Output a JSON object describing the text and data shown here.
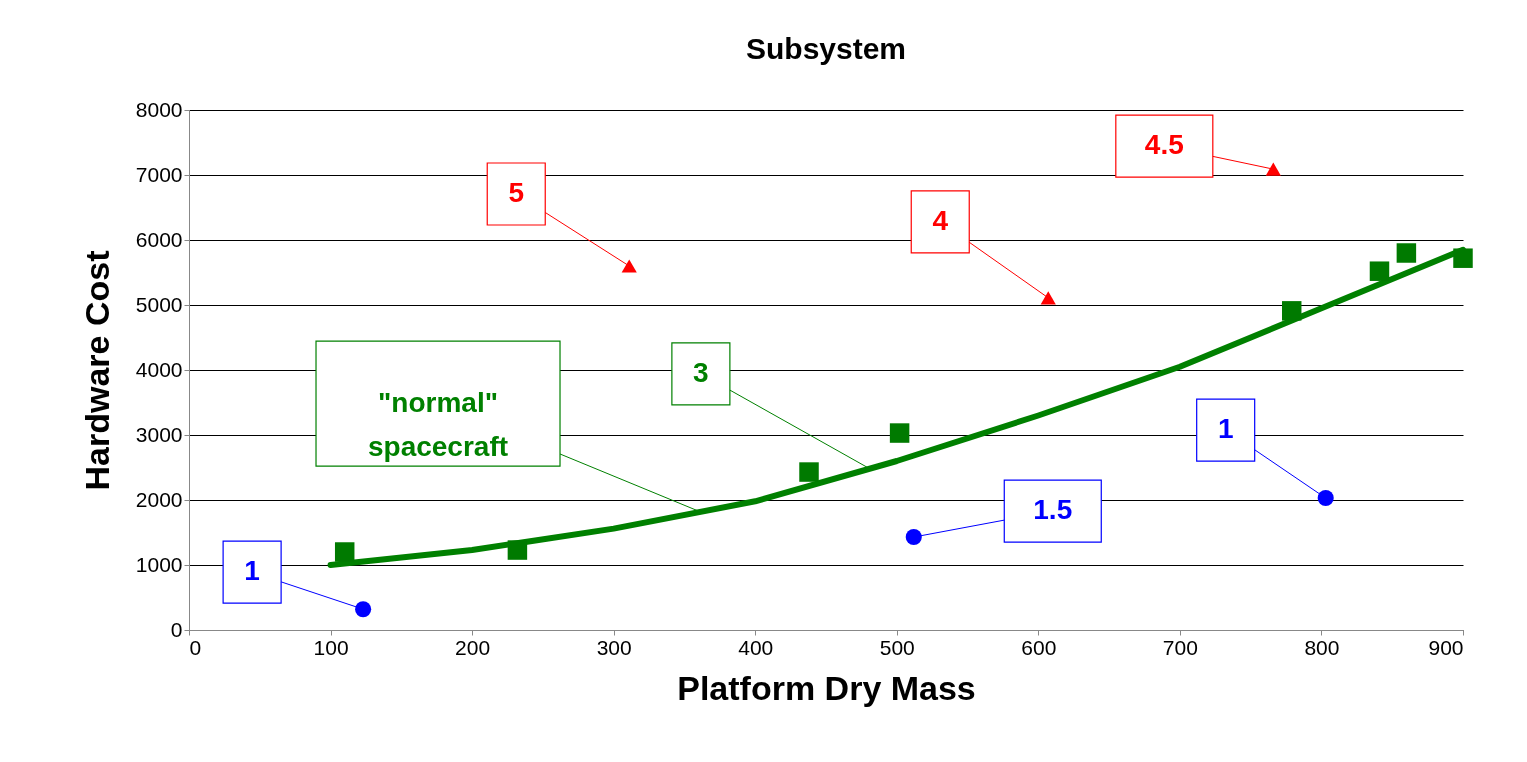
{
  "chart_data": {
    "type": "scatter",
    "title": "Subsystem",
    "xlabel": "Platform Dry Mass",
    "ylabel": "Hardware Cost",
    "xlim": [
      0,
      900
    ],
    "ylim": [
      0,
      8000
    ],
    "xticks": [
      0,
      100,
      200,
      300,
      400,
      500,
      600,
      700,
      800,
      900
    ],
    "yticks": [
      0,
      1000,
      2000,
      3000,
      4000,
      5000,
      6000,
      7000,
      8000
    ],
    "grid": "y",
    "series": [
      {
        "type": "line",
        "color": "#008000",
        "marker": "none",
        "x": [
          100,
          200,
          300,
          400,
          500,
          600,
          700,
          800,
          900
        ],
        "values": [
          1000,
          1230,
          1560,
          1980,
          2600,
          3300,
          4050,
          4950,
          5850
        ]
      },
      {
        "color": "#007a00",
        "marker": "square",
        "x": [
          110,
          232,
          438,
          502,
          779,
          841,
          860,
          900
        ],
        "values": [
          1200,
          1230,
          2430,
          3030,
          4910,
          5520,
          5800,
          5720
        ]
      },
      {
        "color": "#0000ff",
        "marker": "circle",
        "x": [
          123,
          512,
          803
        ],
        "values": [
          320,
          1430,
          2030
        ]
      },
      {
        "color": "#ff0000",
        "marker": "triangle",
        "x": [
          311,
          607,
          766
        ],
        "values": [
          5600,
          5110,
          7090
        ]
      }
    ],
    "annotations": [
      {
        "text": "1",
        "x": 123,
        "y": 320
      },
      {
        "text": "1.5",
        "x": 512,
        "y": 1430
      },
      {
        "text": "1",
        "x": 803,
        "y": 2030
      },
      {
        "text": "5",
        "x": 311,
        "y": 5600
      },
      {
        "text": "4",
        "x": 607,
        "y": 5110
      },
      {
        "text": "4.5",
        "x": 766,
        "y": 7090
      },
      {
        "text": "3",
        "x": 481,
        "y": 2480
      },
      {
        "text": "\"normal\" spacecraft",
        "x": 361,
        "y": 1820
      }
    ]
  }
}
